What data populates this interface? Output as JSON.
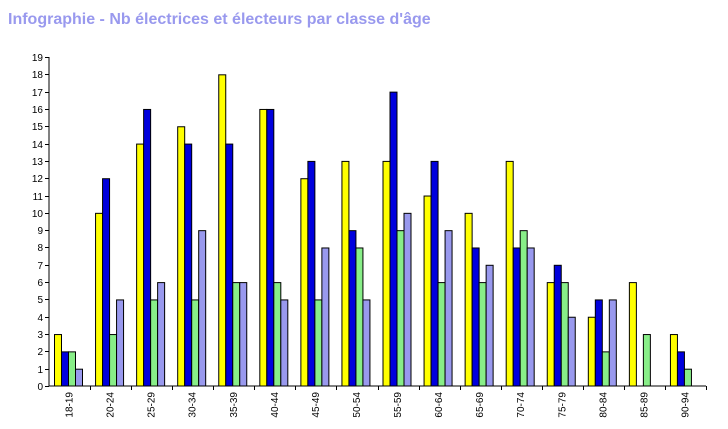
{
  "chart_data": {
    "type": "bar",
    "title": "Infographie - Nb électrices et électeurs par classe d'âge",
    "title_color": "#9999ee",
    "categories": [
      "18-19",
      "20-24",
      "25-29",
      "30-34",
      "35-39",
      "40-44",
      "45-49",
      "50-54",
      "55-59",
      "60-64",
      "65-69",
      "70-74",
      "75-79",
      "80-84",
      "85-89",
      "90-94"
    ],
    "series": [
      {
        "color": "#ffff00",
        "values": [
          3,
          10,
          14,
          15,
          18,
          16,
          12,
          13,
          13,
          11,
          10,
          13,
          6,
          4,
          6,
          3
        ]
      },
      {
        "color": "#0000dd",
        "values": [
          2,
          12,
          16,
          14,
          14,
          16,
          13,
          9,
          17,
          13,
          8,
          8,
          7,
          5,
          0,
          2
        ]
      },
      {
        "color": "#88ee88",
        "values": [
          2,
          3,
          5,
          5,
          6,
          6,
          5,
          8,
          9,
          6,
          6,
          9,
          6,
          2,
          3,
          1
        ]
      },
      {
        "color": "#9999ee",
        "values": [
          1,
          5,
          6,
          9,
          6,
          5,
          8,
          5,
          10,
          9,
          7,
          8,
          4,
          5,
          0,
          0
        ]
      }
    ],
    "ylim": [
      0,
      19
    ],
    "yticks": [
      0,
      1,
      2,
      3,
      4,
      5,
      6,
      7,
      8,
      9,
      10,
      11,
      12,
      13,
      14,
      15,
      16,
      17,
      18,
      19
    ],
    "xlabel": "",
    "ylabel": "",
    "grid": false,
    "legend": false
  }
}
